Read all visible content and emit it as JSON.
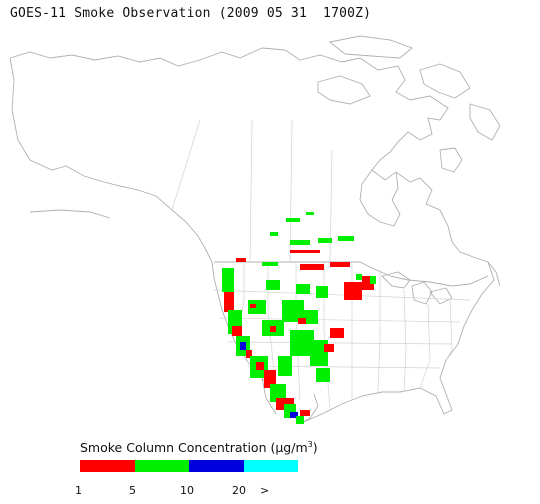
{
  "title": "GOES-11 Smoke Observation (2009 05 31  1700Z)",
  "legend": {
    "title_prefix": "Smoke Column Concentration (",
    "unit_mu": "μg/m",
    "unit_sup": "3",
    "title_suffix": ")",
    "colors": [
      "#ff0000",
      "#00ee00",
      "#0000dd",
      "#00ffff"
    ],
    "ticks": [
      "1",
      "5",
      "10",
      "20",
      ">"
    ]
  },
  "map": {
    "outline_color": "#b0b0b0",
    "smoke_levels": [
      "green",
      "red",
      "blue"
    ]
  }
}
